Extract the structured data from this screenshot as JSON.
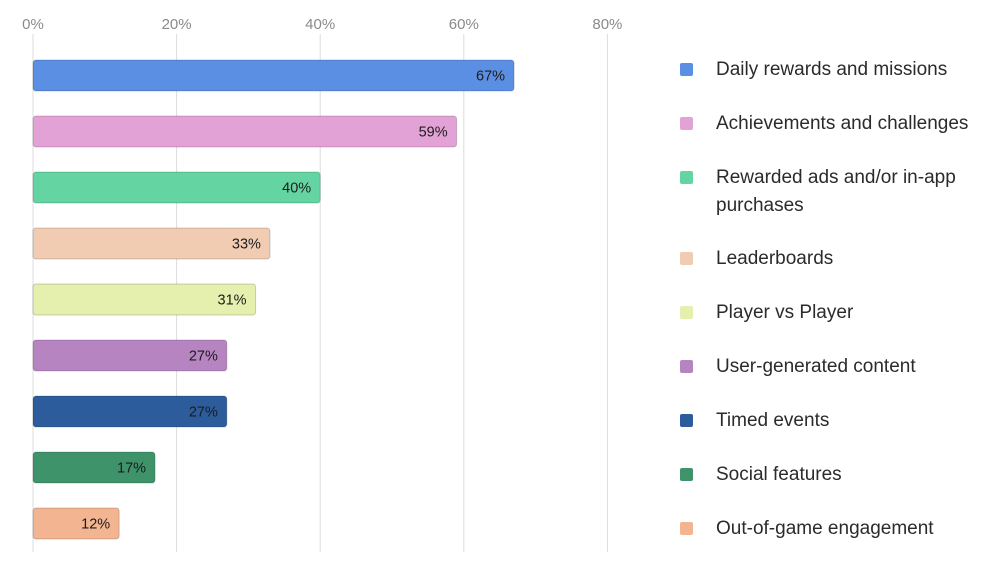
{
  "chart_data": {
    "type": "bar",
    "orientation": "horizontal",
    "title": "",
    "xlabel": "",
    "ylabel": "",
    "xlim": [
      0,
      80
    ],
    "x_ticks": [
      0,
      20,
      40,
      60,
      80
    ],
    "x_tick_labels": [
      "0%",
      "20%",
      "40%",
      "60%",
      "80%"
    ],
    "grid": true,
    "legend_position": "right",
    "categories": [
      "Daily rewards and missions",
      "Achievements and challenges",
      "Rewarded ads and/or in-app purchases",
      "Leaderboards",
      "Player vs Player",
      "User-generated content",
      "Timed events",
      "Social features",
      "Out-of-game engagement"
    ],
    "values": [
      67,
      59,
      40,
      33,
      31,
      27,
      27,
      17,
      12
    ],
    "value_labels": [
      "67%",
      "59%",
      "40%",
      "33%",
      "31%",
      "27%",
      "27%",
      "17%",
      "12%"
    ],
    "colors": [
      "#5b8fe3",
      "#e2a2d6",
      "#63d4a2",
      "#f2ccb2",
      "#e6f0ae",
      "#b784c2",
      "#2c5c9c",
      "#3e936a",
      "#f2b491"
    ]
  }
}
